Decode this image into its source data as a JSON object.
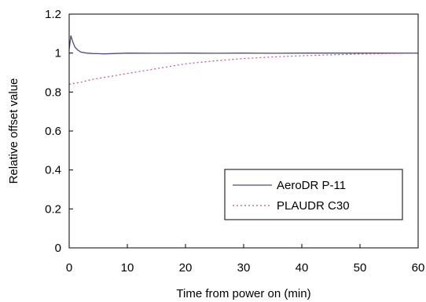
{
  "chart_data": {
    "type": "line",
    "title": "",
    "xlabel": "Time from power on (min)",
    "ylabel": "Relative offset value",
    "xlim": [
      0,
      60
    ],
    "ylim": [
      0,
      1.2
    ],
    "xticks": [
      "0",
      "10",
      "20",
      "30",
      "40",
      "50",
      "60"
    ],
    "yticks": [
      "0",
      "0.2",
      "0.4",
      "0.6",
      "0.8",
      "1",
      "1.2"
    ],
    "grid": false,
    "legend_position": "bottom-right",
    "series": [
      {
        "name": "AeroDR P-11",
        "color": "#4a4a8c",
        "style": "solid",
        "x": [
          0,
          0.3,
          0.6,
          1,
          1.5,
          2,
          3,
          4,
          5,
          6,
          8,
          10,
          15,
          20,
          25,
          30,
          35,
          40,
          45,
          50,
          55,
          60
        ],
        "y": [
          1.02,
          1.09,
          1.06,
          1.03,
          1.015,
          1.005,
          1.0,
          0.998,
          0.997,
          0.996,
          0.998,
          1.0,
          0.999,
          1.0,
          0.999,
          1.0,
          0.999,
          1.0,
          1.0,
          1.0,
          1.0,
          1.0
        ]
      },
      {
        "name": "PLAUDR C30",
        "color": "#c0509a",
        "style": "dotted",
        "x": [
          0,
          2,
          4,
          6,
          8,
          10,
          12,
          15,
          18,
          20,
          25,
          30,
          35,
          40,
          45,
          50,
          55,
          60
        ],
        "y": [
          0.84,
          0.85,
          0.865,
          0.875,
          0.885,
          0.895,
          0.905,
          0.92,
          0.935,
          0.945,
          0.96,
          0.972,
          0.98,
          0.986,
          0.991,
          0.995,
          0.998,
          1.0
        ]
      }
    ]
  }
}
